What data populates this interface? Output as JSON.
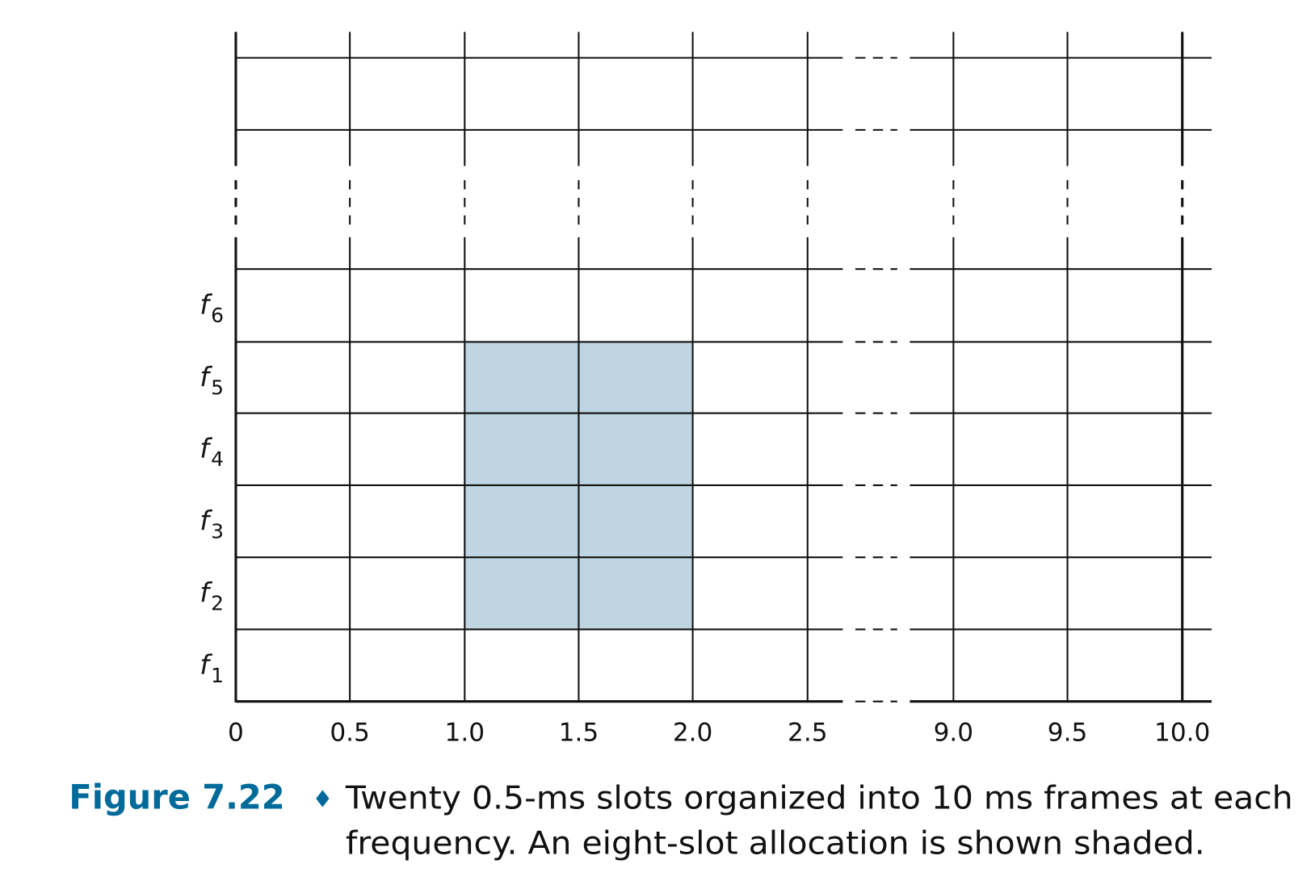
{
  "diagram": {
    "time_ticks": [
      "0",
      "0.5",
      "1.0",
      "1.5",
      "2.0",
      "2.5",
      "9.0",
      "9.5",
      "10.0"
    ],
    "frequencies": [
      {
        "base": "f",
        "sub": "1"
      },
      {
        "base": "f",
        "sub": "2"
      },
      {
        "base": "f",
        "sub": "3"
      },
      {
        "base": "f",
        "sub": "4"
      },
      {
        "base": "f",
        "sub": "5"
      },
      {
        "base": "f",
        "sub": "6"
      }
    ],
    "shaded_allocation": {
      "time_from": 1.0,
      "time_to": 2.0,
      "freq_from": "f2",
      "freq_to": "f5",
      "slots": 8
    },
    "shade_color": "#bfd5e1",
    "line_color": "#111111"
  },
  "caption": {
    "label": "Figure 7.22",
    "bullet": "♦",
    "line1": "Twenty 0.5-ms slots organized into 10 ms frames at each",
    "line2": "frequency. An eight-slot allocation is shown shaded.",
    "label_color": "#006a9a"
  }
}
